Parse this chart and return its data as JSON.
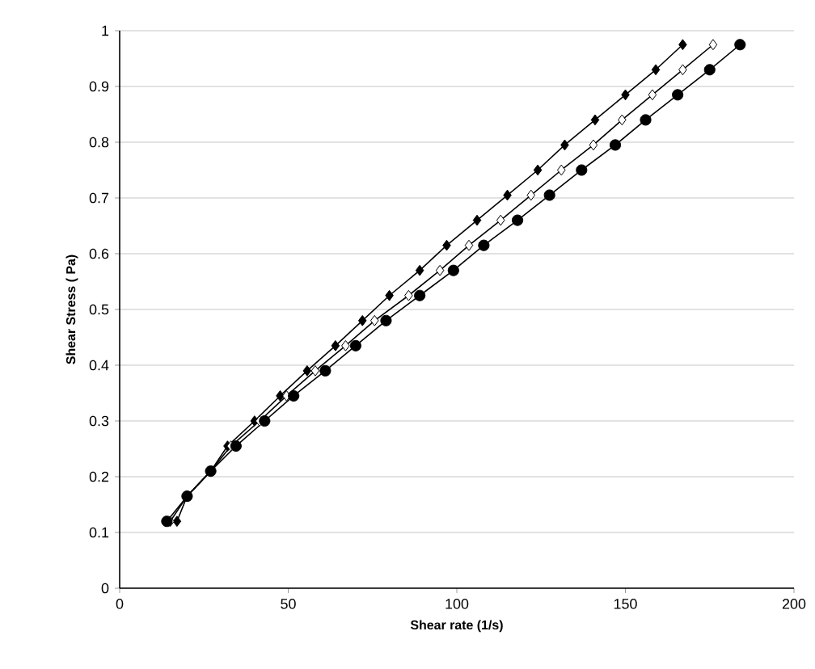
{
  "chart_data": {
    "type": "line",
    "xlabel": "Shear rate (1/s)",
    "ylabel": "Shear Stress ( Pa)",
    "xlim": [
      0,
      200
    ],
    "ylim": [
      0,
      1
    ],
    "xticks": [
      0,
      50,
      100,
      150,
      200
    ],
    "yticks": [
      0,
      0.1,
      0.2,
      0.3,
      0.4,
      0.5,
      0.6,
      0.7,
      0.8,
      0.9,
      1
    ],
    "grid": "y",
    "line_style": "solid",
    "series": [
      {
        "color": "#000000",
        "marker": "diamond",
        "x": [
          17,
          20,
          27,
          32,
          40,
          47.6,
          55.6,
          64,
          72,
          80,
          89,
          97,
          106,
          115,
          124,
          132,
          141,
          150,
          159,
          167
        ],
        "values": [
          0.12,
          0.165,
          0.21,
          0.255,
          0.3,
          0.345,
          0.39,
          0.435,
          0.48,
          0.525,
          0.57,
          0.615,
          0.66,
          0.705,
          0.75,
          0.795,
          0.84,
          0.885,
          0.93,
          0.975
        ]
      },
      {
        "color": "#ffffff",
        "marker": "diamond",
        "x": [
          15,
          20,
          27,
          33,
          41.5,
          49.5,
          58,
          67,
          75.6,
          85.7,
          95,
          103.6,
          113,
          122,
          131,
          140.5,
          149,
          158,
          167,
          176
        ],
        "values": [
          0.12,
          0.165,
          0.21,
          0.255,
          0.3,
          0.345,
          0.39,
          0.435,
          0.48,
          0.525,
          0.57,
          0.615,
          0.66,
          0.705,
          0.75,
          0.795,
          0.84,
          0.885,
          0.93,
          0.975
        ]
      },
      {
        "color": "#000000",
        "marker": "circle",
        "x": [
          14,
          20,
          27,
          34.5,
          43,
          51.6,
          61,
          70,
          79,
          89,
          99,
          108,
          118,
          127.5,
          137,
          147,
          156,
          165.5,
          175,
          184
        ],
        "values": [
          0.12,
          0.165,
          0.21,
          0.255,
          0.3,
          0.345,
          0.39,
          0.435,
          0.48,
          0.525,
          0.57,
          0.615,
          0.66,
          0.705,
          0.75,
          0.795,
          0.84,
          0.885,
          0.93,
          0.975
        ]
      }
    ]
  }
}
